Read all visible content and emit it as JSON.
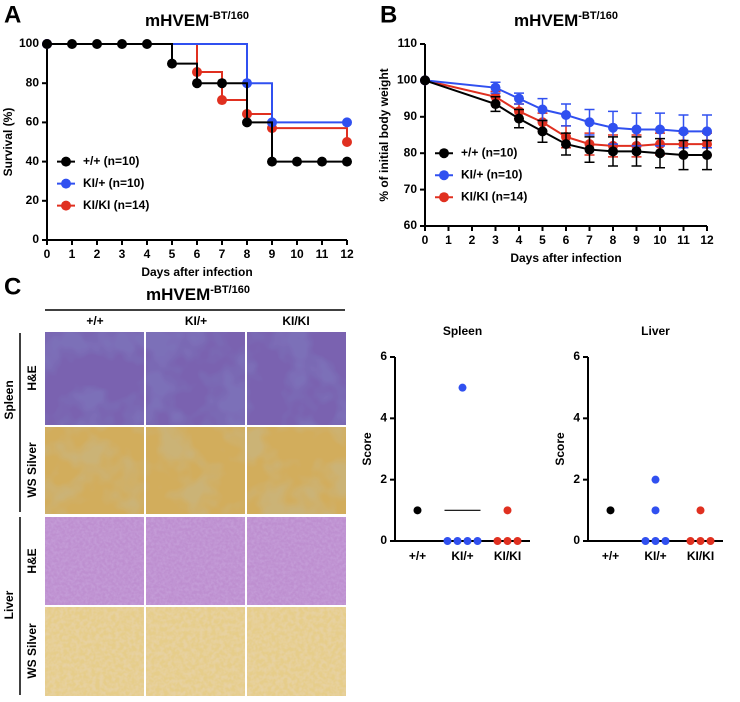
{
  "panels": [
    "A",
    "B",
    "C"
  ],
  "histology": {
    "title": "mHVEM",
    "title_superscript": "-BT/160",
    "columns": [
      "+/+",
      "KI/+",
      "KI/KI"
    ],
    "rows": [
      {
        "tissue": "Spleen",
        "stains": [
          "H&E",
          "WS Silver"
        ]
      },
      {
        "tissue": "Liver",
        "stains": [
          "H&E",
          "WS Silver"
        ]
      }
    ]
  },
  "chart_data": [
    {
      "type": "step",
      "title": "mHVEM",
      "title_superscript": "-BT/160",
      "x_label": "Days after infection",
      "y_label": "Survival (%)",
      "xlim": [
        0,
        12
      ],
      "xticks": [
        0,
        1,
        2,
        3,
        4,
        5,
        6,
        7,
        8,
        9,
        10,
        11,
        12
      ],
      "ylim": [
        0,
        100
      ],
      "yticks": [
        0,
        20,
        40,
        60,
        80,
        100
      ],
      "legend": "lower left",
      "series": [
        {
          "name": "+/+ (n=10)",
          "color": "#000000",
          "x": [
            0,
            1,
            2,
            3,
            4,
            5,
            6,
            7,
            8,
            9,
            10,
            11,
            12
          ],
          "values": [
            100,
            100,
            100,
            100,
            100,
            90,
            80,
            80,
            60,
            40,
            40,
            40,
            40
          ]
        },
        {
          "name": "KI/+ (n=10)",
          "color": "#3050f0",
          "x": [
            0,
            8,
            9,
            12
          ],
          "values": [
            100,
            80,
            60,
            60
          ]
        },
        {
          "name": "KI/KI (n=14)",
          "color": "#e03020",
          "x": [
            0,
            6,
            7,
            8,
            9,
            12
          ],
          "values": [
            100,
            85.7,
            71.4,
            64.3,
            57.1,
            50
          ]
        }
      ]
    },
    {
      "type": "line",
      "title": "mHVEM",
      "title_superscript": "-BT/160",
      "x_label": "Days after infection",
      "y_label": "% of initial body weight",
      "xlim": [
        0,
        12
      ],
      "xticks": [
        0,
        1,
        2,
        3,
        4,
        5,
        6,
        7,
        8,
        9,
        10,
        11,
        12
      ],
      "ylim": [
        60,
        110
      ],
      "yticks": [
        60,
        70,
        80,
        90,
        100,
        110
      ],
      "legend": "lower left",
      "series": [
        {
          "name": "+/+ (n=10)",
          "color": "#000000",
          "x": [
            0,
            3,
            4,
            5,
            6,
            7,
            8,
            9,
            10,
            11,
            12
          ],
          "values": [
            100,
            93.5,
            89.5,
            86,
            82.5,
            81,
            80.5,
            80.5,
            80,
            79.5,
            79.5
          ],
          "errors": [
            0,
            2,
            2.5,
            3,
            3,
            3.5,
            4,
            4,
            4,
            4,
            4
          ]
        },
        {
          "name": "KI/+ (n=10)",
          "color": "#3050f0",
          "x": [
            0,
            3,
            4,
            5,
            6,
            7,
            8,
            9,
            10,
            11,
            12
          ],
          "values": [
            100,
            98,
            95,
            92,
            90.5,
            88.5,
            87,
            86.5,
            86.5,
            86,
            86
          ],
          "errors": [
            0,
            1.5,
            1.5,
            3,
            3,
            3.5,
            4.5,
            4.5,
            4.5,
            4.5,
            4.5
          ]
        },
        {
          "name": "KI/KI (n=14)",
          "color": "#e03020",
          "x": [
            0,
            3,
            4,
            5,
            6,
            7,
            8,
            9,
            10,
            11,
            12
          ],
          "values": [
            100,
            95.5,
            91.5,
            88.5,
            84.5,
            82.5,
            82,
            82,
            82.5,
            82.5,
            82.5
          ],
          "errors": [
            0,
            1.5,
            2,
            2.5,
            3,
            3,
            3,
            3,
            3,
            3,
            3
          ]
        }
      ]
    },
    {
      "type": "strip",
      "title": "Spleen",
      "y_label": "Score",
      "ylim": [
        0,
        6
      ],
      "yticks": [
        0,
        2,
        4,
        6
      ],
      "categories": [
        "+/+",
        "KI/+",
        "KI/KI"
      ],
      "colors": [
        "#000000",
        "#3050f0",
        "#e03020"
      ],
      "points": [
        [
          1
        ],
        [
          5,
          0,
          0,
          0,
          0
        ],
        [
          1,
          0,
          0,
          0
        ]
      ],
      "means": [
        null,
        1,
        null
      ]
    },
    {
      "type": "strip",
      "title": "Liver",
      "y_label": "Score",
      "ylim": [
        0,
        6
      ],
      "yticks": [
        0,
        2,
        4,
        6
      ],
      "categories": [
        "+/+",
        "KI/+",
        "KI/KI"
      ],
      "colors": [
        "#000000",
        "#3050f0",
        "#e03020"
      ],
      "points": [
        [
          1
        ],
        [
          2,
          1,
          0,
          0,
          0
        ],
        [
          1,
          0,
          0,
          0
        ]
      ],
      "means": [
        null,
        null,
        null
      ]
    }
  ]
}
